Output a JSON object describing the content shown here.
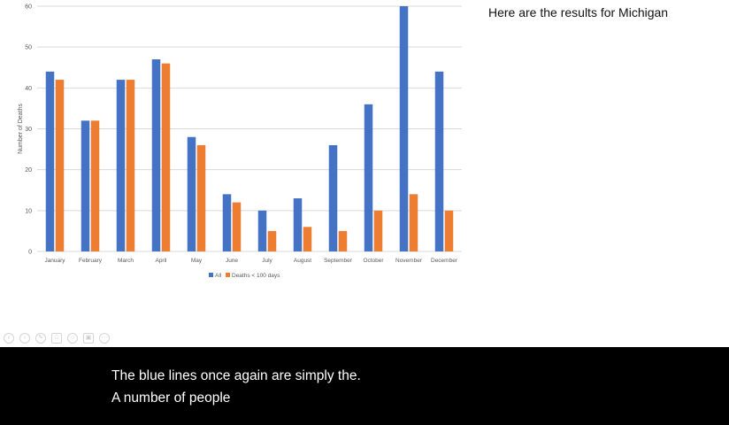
{
  "slide": {
    "text": "Here are the results for Michigan"
  },
  "toolbar": {
    "buttons": [
      {
        "icon": "arrow-left-icon"
      },
      {
        "icon": "arrow-right-icon"
      },
      {
        "icon": "pen-icon"
      },
      {
        "icon": "copy-icon"
      },
      {
        "icon": "zoom-icon"
      },
      {
        "icon": "subtitles-icon"
      },
      {
        "icon": "more-icon"
      }
    ]
  },
  "captions": {
    "line1": "The blue lines once again are simply the.",
    "line2": "A number of people"
  },
  "chart_data": {
    "type": "bar",
    "title": "",
    "xlabel": "",
    "ylabel": "Number of Deaths",
    "ylim": [
      0,
      60
    ],
    "yticks": [
      0,
      10,
      20,
      30,
      40,
      50,
      60
    ],
    "grid": true,
    "legend_position": "bottom",
    "categories": [
      "January",
      "February",
      "March",
      "April",
      "May",
      "June",
      "July",
      "August",
      "September",
      "October",
      "November",
      "December"
    ],
    "series": [
      {
        "name": "All",
        "color": "#4472C4",
        "values": [
          44,
          32,
          42,
          47,
          28,
          14,
          10,
          13,
          26,
          36,
          60,
          44
        ]
      },
      {
        "name": "Deaths < 100 days",
        "color": "#ED7D31",
        "values": [
          42,
          32,
          42,
          46,
          26,
          12,
          5,
          6,
          5,
          10,
          14,
          10
        ]
      }
    ]
  }
}
